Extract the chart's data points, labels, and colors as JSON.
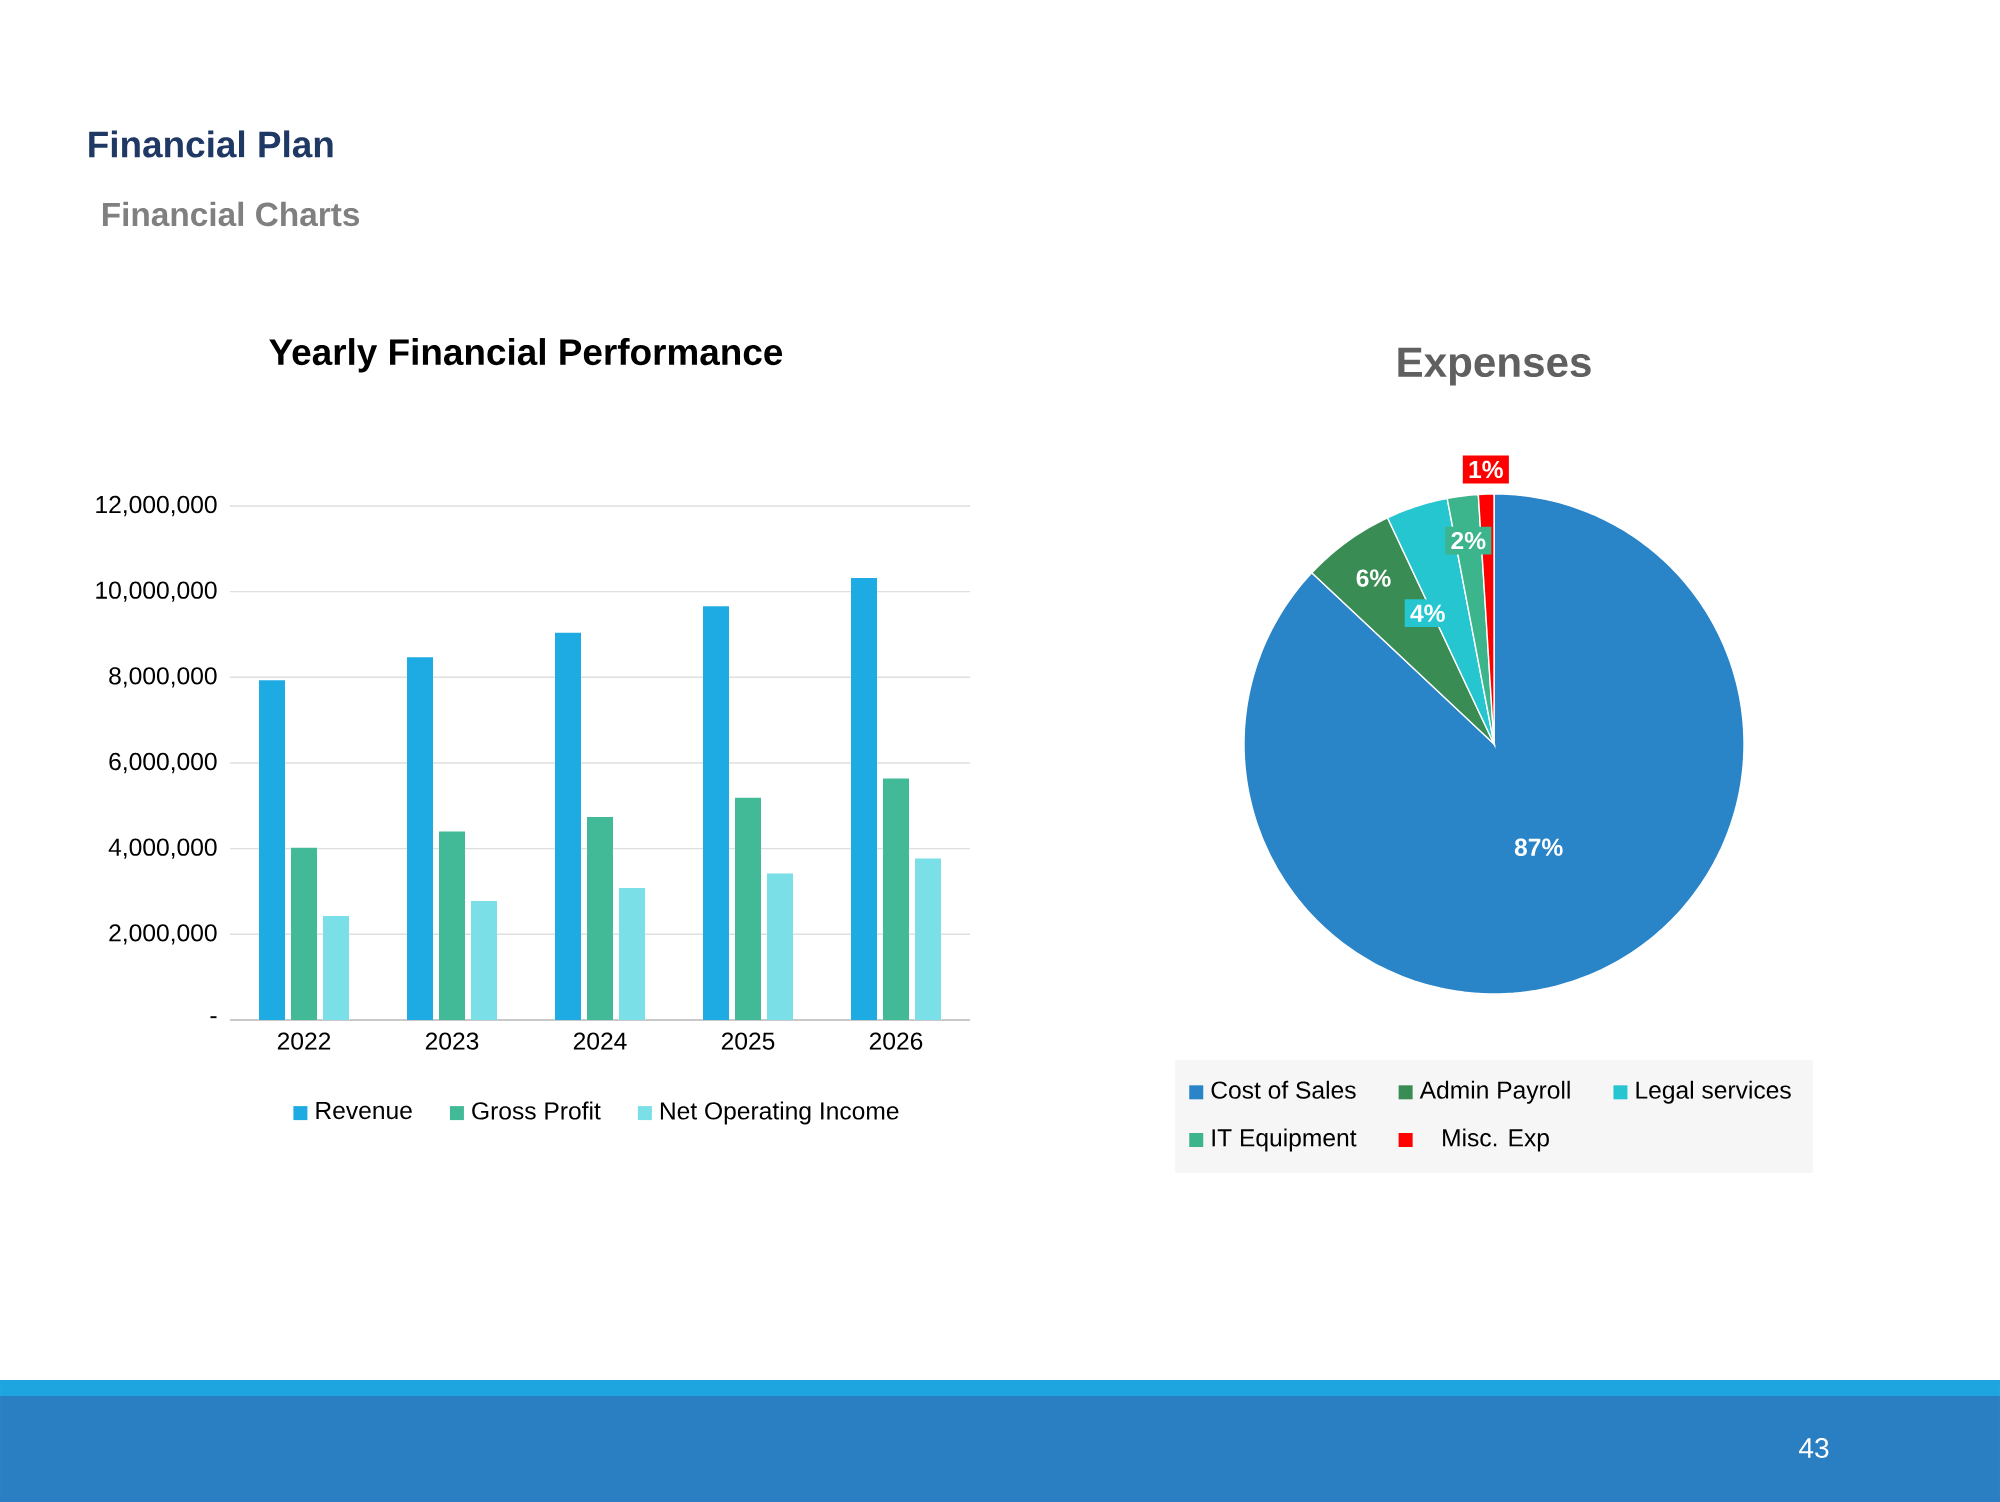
{
  "chart_data": [
    {
      "type": "bar",
      "title": "Yearly Financial Performance",
      "annotations": [
        "Financial Plan",
        "Financial Charts",
        "43"
      ],
      "categories": [
        "2022",
        "2023",
        "2024",
        "2025",
        "2026"
      ],
      "series": [
        {
          "name": "Revenue",
          "color": "#1eabe3",
          "values": [
            7930000,
            8470000,
            9040000,
            9660000,
            10320000
          ]
        },
        {
          "name": "Gross Profit",
          "color": "#43ba97",
          "values": [
            4020000,
            4400000,
            4740000,
            5190000,
            5640000
          ]
        },
        {
          "name": "Net Operating Income",
          "color": "#7adfe6",
          "values": [
            2430000,
            2780000,
            3080000,
            3420000,
            3770000
          ]
        }
      ],
      "ylim": [
        0,
        12000000
      ],
      "yticks": [
        {
          "value": 0,
          "label": "-"
        },
        {
          "value": 2000000,
          "label": "2,000,000"
        },
        {
          "value": 4000000,
          "label": "4,000,000"
        },
        {
          "value": 6000000,
          "label": "6,000,000"
        },
        {
          "value": 8000000,
          "label": "8,000,000"
        },
        {
          "value": 10000000,
          "label": "10,000,000"
        },
        {
          "value": 12000000,
          "label": "12,000,000"
        }
      ],
      "grid": "y",
      "legend": "bottom"
    },
    {
      "type": "pie",
      "title": "Expenses",
      "categories": [
        "Cost of Sales",
        "Admin Payroll",
        "Legal services",
        "IT Equipment",
        "Misc. Exp"
      ],
      "values": [
        87,
        6,
        4,
        2,
        1
      ],
      "value_labels": [
        "87%",
        "6%",
        "4%",
        "2%",
        "1%"
      ],
      "colors": [
        "#2a84c8",
        "#3a8c55",
        "#26c6d0",
        "#3cb48c",
        "#ff0000"
      ],
      "legend": "bottom"
    }
  ]
}
